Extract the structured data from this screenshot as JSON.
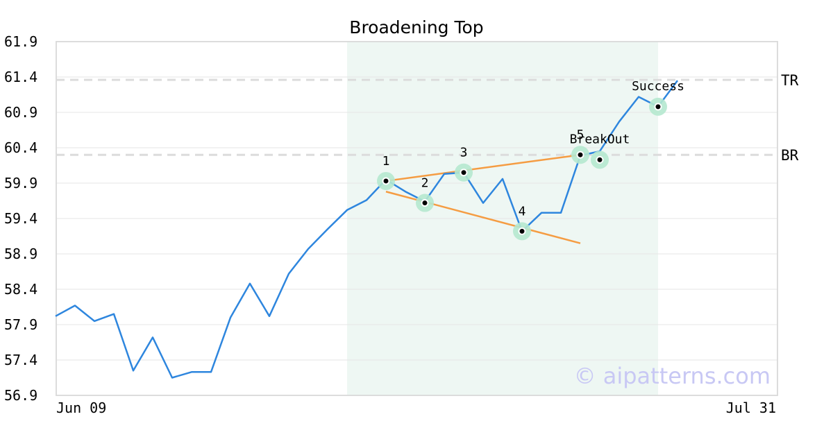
{
  "chart_data": {
    "type": "line",
    "title": "Broadening Top",
    "xlabel": "",
    "ylabel": "",
    "x_ticks": [
      "Jun 09",
      "Jul 31"
    ],
    "x_range": [
      0,
      37
    ],
    "ylim": [
      56.9,
      61.9
    ],
    "y_ticks": [
      "61.9",
      "61.4",
      "60.9",
      "60.4",
      "59.9",
      "59.4",
      "58.9",
      "58.4",
      "57.9",
      "57.4",
      "56.9"
    ],
    "grid": true,
    "series": [
      {
        "color": "#2e86de",
        "values": [
          58.02,
          58.17,
          57.95,
          58.05,
          57.25,
          57.72,
          57.15,
          57.23,
          57.23,
          58.0,
          58.48,
          58.02,
          58.62,
          58.97,
          59.25,
          59.52,
          59.66,
          59.95,
          59.78,
          59.64,
          60.03,
          60.05,
          59.62,
          59.96,
          59.22,
          59.48,
          59.48,
          60.29,
          60.35,
          60.77,
          61.12,
          60.98,
          61.35
        ]
      }
    ],
    "highlight_region": {
      "x_start": 15,
      "x_end": 31,
      "color": "#eef7f3"
    },
    "levels": [
      {
        "label": "TR",
        "y": 61.36
      },
      {
        "label": "BR",
        "y": 60.3
      }
    ],
    "trendlines": [
      {
        "color": "#f59c42",
        "points": [
          [
            17,
            59.93
          ],
          [
            27,
            60.3
          ]
        ]
      },
      {
        "color": "#f59c42",
        "points": [
          [
            17,
            59.78
          ],
          [
            27,
            59.05
          ]
        ]
      }
    ],
    "markers": [
      {
        "x": 17,
        "y": 59.93,
        "label": "1"
      },
      {
        "x": 19,
        "y": 59.62,
        "label": "2"
      },
      {
        "x": 21,
        "y": 60.05,
        "label": "3"
      },
      {
        "x": 24,
        "y": 59.22,
        "label": "4"
      },
      {
        "x": 27,
        "y": 60.3,
        "label": "5"
      },
      {
        "x": 28,
        "y": 60.23,
        "label": "BreakOut"
      },
      {
        "x": 31,
        "y": 60.98,
        "label": "Success"
      }
    ],
    "watermark": "© aipatterns.com"
  }
}
